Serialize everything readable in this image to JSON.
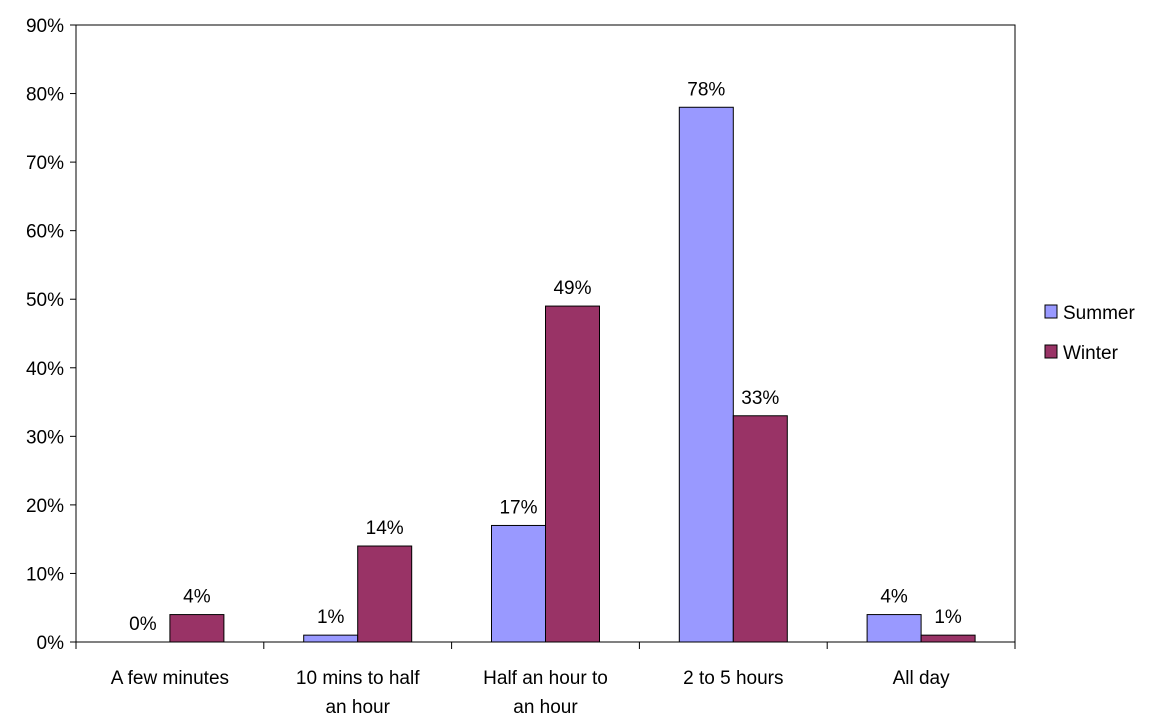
{
  "chart_data": {
    "type": "bar",
    "categories": [
      [
        "A few minutes"
      ],
      [
        "10 mins to half",
        "an hour"
      ],
      [
        "Half an hour to",
        "an hour"
      ],
      [
        "2 to 5 hours"
      ],
      [
        "All day"
      ]
    ],
    "series": [
      {
        "name": "Summer",
        "values": [
          0,
          1,
          17,
          78,
          4
        ],
        "labels": [
          "0%",
          "1%",
          "17%",
          "78%",
          "4%"
        ],
        "color": "#9999ff"
      },
      {
        "name": "Winter",
        "values": [
          4,
          14,
          49,
          33,
          1
        ],
        "labels": [
          "4%",
          "14%",
          "49%",
          "33%",
          "1%"
        ],
        "color": "#993366"
      }
    ],
    "ylim": [
      0,
      90
    ],
    "yticks": [
      0,
      10,
      20,
      30,
      40,
      50,
      60,
      70,
      80,
      90
    ],
    "ytick_labels": [
      "0%",
      "10%",
      "20%",
      "30%",
      "40%",
      "50%",
      "60%",
      "70%",
      "80%",
      "90%"
    ],
    "xlabel": "",
    "ylabel": "",
    "title": "",
    "grid": false,
    "legend_position": "right"
  }
}
